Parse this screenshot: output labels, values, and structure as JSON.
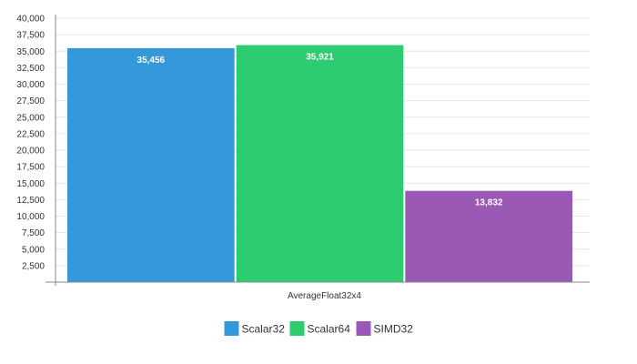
{
  "chart_data": {
    "type": "bar",
    "categories": [
      "AverageFloat32x4"
    ],
    "series": [
      {
        "name": "Scalar32",
        "values": [
          35456
        ],
        "color": "#3498db",
        "label": "35,456"
      },
      {
        "name": "Scalar64",
        "values": [
          35921
        ],
        "color": "#2ecc71",
        "label": "35,921"
      },
      {
        "name": "SIMD32",
        "values": [
          13832
        ],
        "color": "#9b59b6",
        "label": "13,832"
      }
    ],
    "ylim": [
      0,
      40000
    ],
    "yticks": [
      2500,
      5000,
      7500,
      10000,
      12500,
      15000,
      17500,
      20000,
      22500,
      25000,
      27500,
      30000,
      32500,
      35000,
      37500,
      40000
    ],
    "ytick_labels": [
      "2,500",
      "5,000",
      "7,500",
      "10,000",
      "12,500",
      "15,000",
      "17,500",
      "20,000",
      "22,500",
      "25,000",
      "27,500",
      "30,000",
      "32,500",
      "35,000",
      "37,500",
      "40,000"
    ],
    "grid": true,
    "legend_position": "bottom-center"
  }
}
